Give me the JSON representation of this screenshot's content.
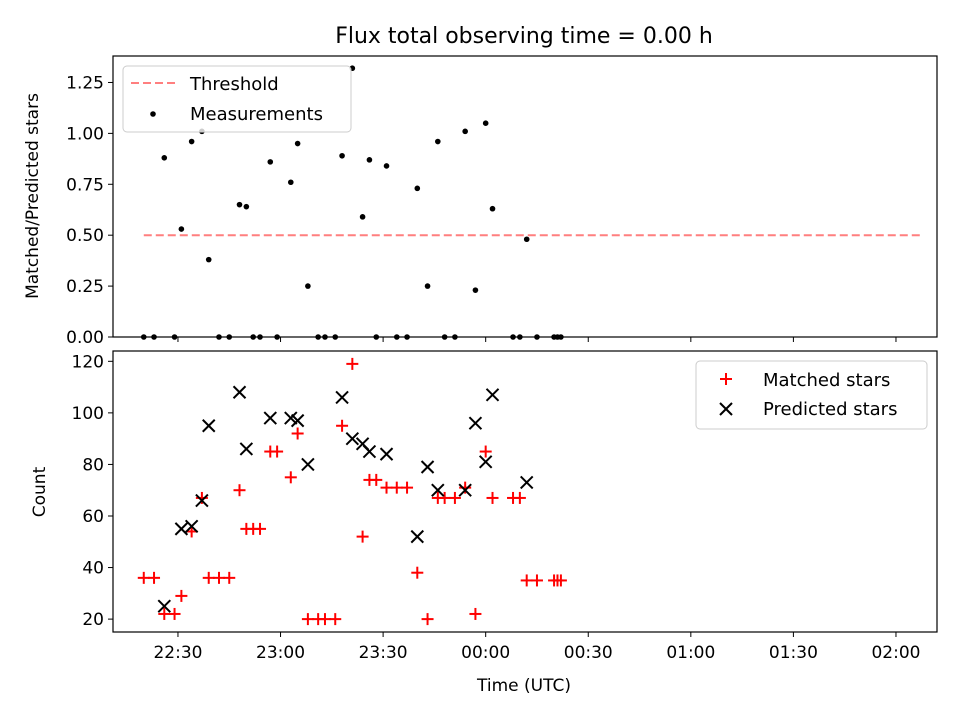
{
  "figure": {
    "title": "Flux total observing time = 0.00 h"
  },
  "chart_data": [
    {
      "type": "scatter",
      "title": "Flux total observing time = 0.00 h",
      "xlabel": "",
      "ylabel": "Matched/Predicted stars",
      "xlim": [
        "22:11",
        "02:12"
      ],
      "ylim": [
        0,
        1.38
      ],
      "yticks": [
        "0.00",
        "0.25",
        "0.50",
        "0.75",
        "1.00",
        "1.25"
      ],
      "threshold": {
        "name": "Threshold",
        "value": 0.5,
        "x_range": [
          "22:20",
          "02:08"
        ],
        "color": "#ff7f7f"
      },
      "series": [
        {
          "name": "Measurements",
          "color": "#000000",
          "points": [
            [
              "22:20",
              0.0
            ],
            [
              "22:23",
              0.0
            ],
            [
              "22:26",
              0.88
            ],
            [
              "22:29",
              0.0
            ],
            [
              "22:31",
              0.53
            ],
            [
              "22:34",
              0.96
            ],
            [
              "22:37",
              1.01
            ],
            [
              "22:39",
              0.38
            ],
            [
              "22:42",
              0.0
            ],
            [
              "22:45",
              0.0
            ],
            [
              "22:48",
              0.65
            ],
            [
              "22:50",
              0.64
            ],
            [
              "22:52",
              0.0
            ],
            [
              "22:54",
              0.0
            ],
            [
              "22:57",
              0.86
            ],
            [
              "22:59",
              0.0
            ],
            [
              "23:03",
              0.76
            ],
            [
              "23:05",
              0.95
            ],
            [
              "23:08",
              0.25
            ],
            [
              "23:11",
              0.0
            ],
            [
              "23:13",
              0.0
            ],
            [
              "23:16",
              0.0
            ],
            [
              "23:18",
              0.89
            ],
            [
              "23:21",
              1.32
            ],
            [
              "23:24",
              0.59
            ],
            [
              "23:26",
              0.87
            ],
            [
              "23:28",
              0.0
            ],
            [
              "23:31",
              0.84
            ],
            [
              "23:34",
              0.0
            ],
            [
              "23:37",
              0.0
            ],
            [
              "23:40",
              0.73
            ],
            [
              "23:43",
              0.25
            ],
            [
              "23:46",
              0.96
            ],
            [
              "23:48",
              0.0
            ],
            [
              "23:51",
              0.0
            ],
            [
              "23:54",
              1.01
            ],
            [
              "23:57",
              0.23
            ],
            [
              "00:00",
              1.05
            ],
            [
              "00:02",
              0.63
            ],
            [
              "00:08",
              0.0
            ],
            [
              "00:10",
              0.0
            ],
            [
              "00:12",
              0.48
            ],
            [
              "00:15",
              0.0
            ],
            [
              "00:20",
              0.0
            ],
            [
              "00:21",
              0.0
            ],
            [
              "00:22",
              0.0
            ]
          ]
        }
      ],
      "legend": {
        "placement": "upper-left",
        "entries": [
          "Threshold",
          "Measurements"
        ]
      }
    },
    {
      "type": "scatter",
      "title": "",
      "xlabel": "Time (UTC)",
      "ylabel": "Count",
      "xlim": [
        "22:11",
        "02:12"
      ],
      "ylim": [
        15,
        124
      ],
      "xticks": [
        "22:30",
        "23:00",
        "23:30",
        "00:00",
        "00:30",
        "01:00",
        "01:30",
        "02:00"
      ],
      "yticks": [
        "20",
        "40",
        "60",
        "80",
        "100",
        "120"
      ],
      "series": [
        {
          "name": "Matched stars",
          "color": "#ff0000",
          "marker": "plus",
          "points": [
            [
              "22:20",
              36
            ],
            [
              "22:23",
              36
            ],
            [
              "22:26",
              22
            ],
            [
              "22:29",
              22
            ],
            [
              "22:31",
              29
            ],
            [
              "22:34",
              54
            ],
            [
              "22:37",
              67
            ],
            [
              "22:39",
              36
            ],
            [
              "22:42",
              36
            ],
            [
              "22:45",
              36
            ],
            [
              "22:48",
              70
            ],
            [
              "22:50",
              55
            ],
            [
              "22:52",
              55
            ],
            [
              "22:54",
              55
            ],
            [
              "22:57",
              85
            ],
            [
              "22:59",
              85
            ],
            [
              "23:03",
              75
            ],
            [
              "23:05",
              92
            ],
            [
              "23:08",
              20
            ],
            [
              "23:11",
              20
            ],
            [
              "23:13",
              20
            ],
            [
              "23:16",
              20
            ],
            [
              "23:18",
              95
            ],
            [
              "23:21",
              119
            ],
            [
              "23:24",
              52
            ],
            [
              "23:26",
              74
            ],
            [
              "23:28",
              74
            ],
            [
              "23:31",
              71
            ],
            [
              "23:34",
              71
            ],
            [
              "23:37",
              71
            ],
            [
              "23:40",
              38
            ],
            [
              "23:43",
              20
            ],
            [
              "23:46",
              67
            ],
            [
              "23:48",
              67
            ],
            [
              "23:51",
              67
            ],
            [
              "23:54",
              71
            ],
            [
              "23:57",
              22
            ],
            [
              "00:00",
              85
            ],
            [
              "00:02",
              67
            ],
            [
              "00:08",
              67
            ],
            [
              "00:10",
              67
            ],
            [
              "00:12",
              35
            ],
            [
              "00:15",
              35
            ],
            [
              "00:20",
              35
            ],
            [
              "00:21",
              35
            ],
            [
              "00:22",
              35
            ]
          ]
        },
        {
          "name": "Predicted stars",
          "color": "#000000",
          "marker": "x",
          "points": [
            [
              "22:26",
              25
            ],
            [
              "22:31",
              55
            ],
            [
              "22:34",
              56
            ],
            [
              "22:37",
              66
            ],
            [
              "22:39",
              95
            ],
            [
              "22:48",
              108
            ],
            [
              "22:50",
              86
            ],
            [
              "22:57",
              98
            ],
            [
              "23:03",
              98
            ],
            [
              "23:05",
              97
            ],
            [
              "23:08",
              80
            ],
            [
              "23:18",
              106
            ],
            [
              "23:21",
              90
            ],
            [
              "23:24",
              88
            ],
            [
              "23:26",
              85
            ],
            [
              "23:31",
              84
            ],
            [
              "23:40",
              52
            ],
            [
              "23:43",
              79
            ],
            [
              "23:46",
              70
            ],
            [
              "23:54",
              70
            ],
            [
              "23:57",
              96
            ],
            [
              "00:00",
              81
            ],
            [
              "00:02",
              107
            ],
            [
              "00:12",
              73
            ]
          ]
        }
      ],
      "legend": {
        "placement": "upper-right",
        "entries": [
          "Matched stars",
          "Predicted stars"
        ]
      }
    }
  ]
}
